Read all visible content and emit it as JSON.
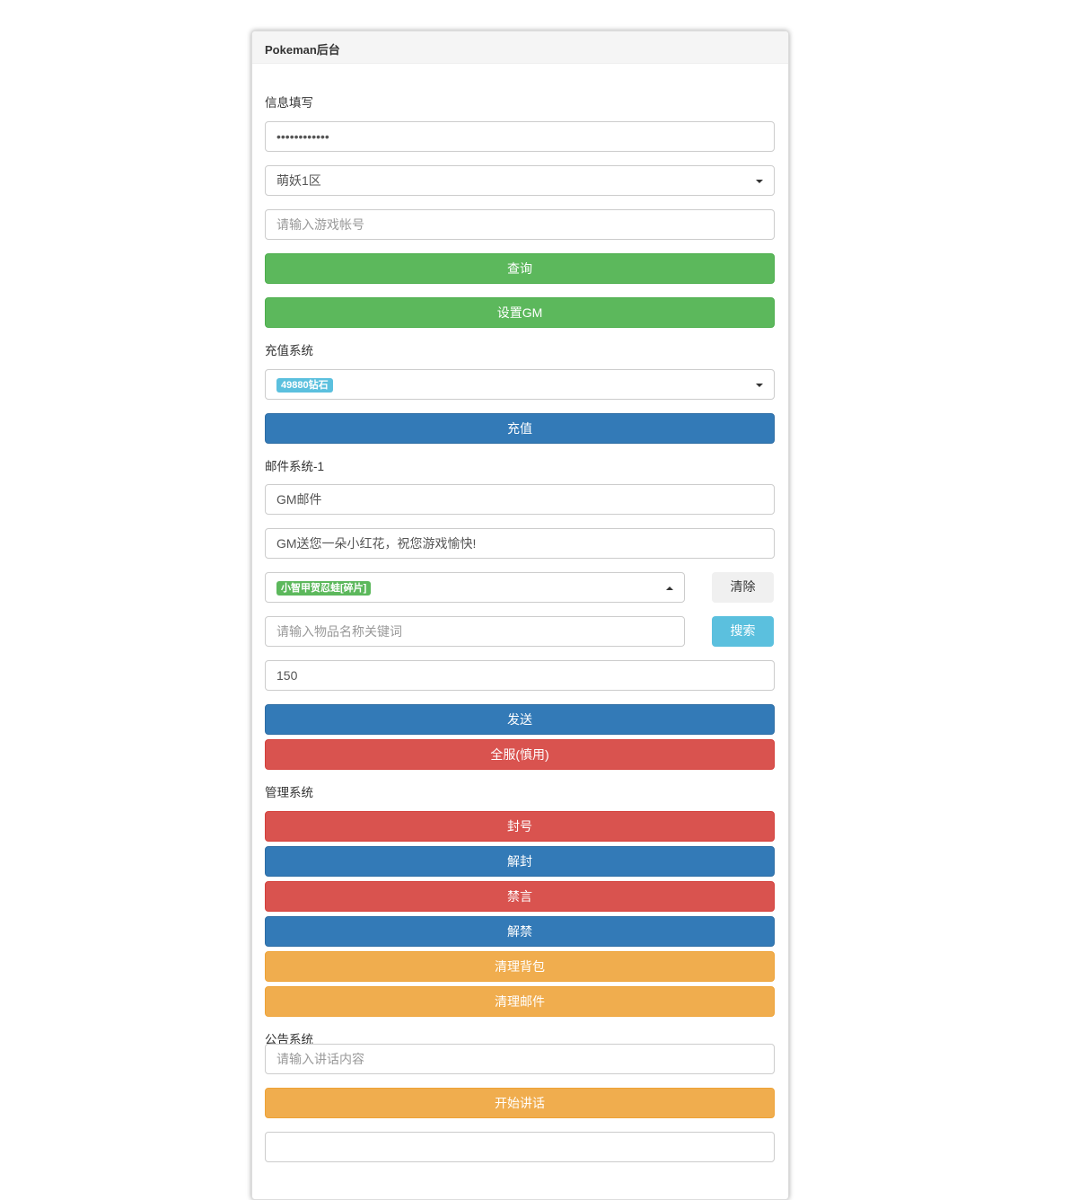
{
  "panel": {
    "title": "Pokeman后台"
  },
  "info": {
    "label": "信息填写",
    "password_value": "••••••••••••",
    "server_value": "萌妖1区",
    "account_placeholder": "请输入游戏帐号",
    "query_label": "查询",
    "set_gm_label": "设置GM"
  },
  "recharge": {
    "label": "充值系统",
    "selected_tag": "49880钻石",
    "recharge_label": "充值"
  },
  "mail": {
    "label": "邮件系统-1",
    "title_value": "GM邮件",
    "content_value": "GM送您一朵小红花，祝您游戏愉快!",
    "item_tag": "小智甲贺忍蛙[碎片]",
    "clear_label": "清除",
    "search_placeholder": "请输入物品名称关键词",
    "search_label": "搜索",
    "quantity_value": "150",
    "send_label": "发送",
    "send_all_label": "全服(慎用)"
  },
  "manage": {
    "label": "管理系统",
    "ban_label": "封号",
    "unban_label": "解封",
    "mute_label": "禁言",
    "unmute_label": "解禁",
    "clear_bag_label": "清理背包",
    "clear_mail_label": "清理邮件"
  },
  "notice": {
    "label": "公告系统",
    "speech_placeholder": "请输入讲话内容",
    "start_label": "开始讲话"
  },
  "colors": {
    "success": "#5cb85c",
    "primary": "#337ab7",
    "danger": "#d9534f",
    "warning": "#f0ad4e",
    "info": "#5bc0de"
  }
}
